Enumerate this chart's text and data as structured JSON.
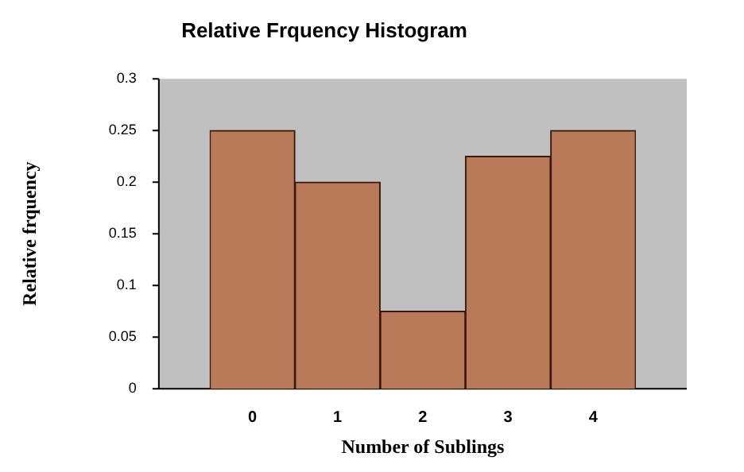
{
  "chart_data": {
    "type": "bar",
    "title": "Relative Frquency Histogram",
    "xlabel": "Number of Sublings",
    "ylabel": "Relative frquency",
    "categories": [
      "0",
      "1",
      "2",
      "3",
      "4"
    ],
    "values": [
      0.25,
      0.2,
      0.075,
      0.225,
      0.25
    ],
    "color": "#b87a58",
    "ylim": [
      0,
      0.3
    ],
    "yticks": [
      0,
      0.05,
      0.1,
      0.15,
      0.2,
      0.25,
      0.3
    ],
    "grid": false,
    "legend": false
  }
}
